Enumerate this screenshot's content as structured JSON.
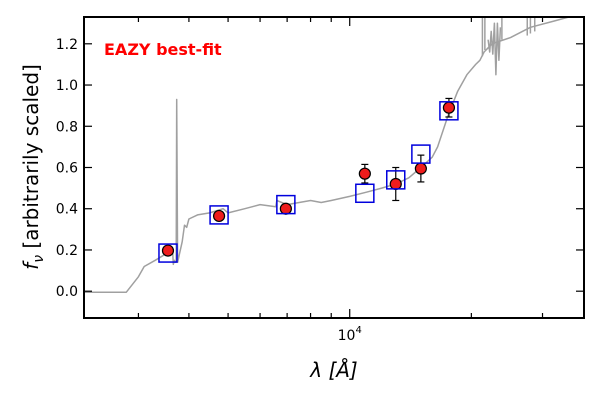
{
  "chart_data": {
    "type": "scatter",
    "title": "",
    "xlabel": "λ [Å]",
    "ylabel": "f_ν [arbitrarily scaled]",
    "x_scale": "log",
    "xlim": [
      2200,
      38000
    ],
    "ylim": [
      -0.13,
      1.33
    ],
    "y_ticks": [
      0.0,
      0.2,
      0.4,
      0.6,
      0.8,
      1.0,
      1.2
    ],
    "y_tick_labels": [
      "0.0",
      "0.2",
      "0.4",
      "0.6",
      "0.8",
      "1.0",
      "1.2"
    ],
    "x_major_ticks": [
      10000
    ],
    "x_major_tick_labels": [
      "10^4"
    ],
    "x_minor_ticks": [
      3000,
      4000,
      5000,
      6000,
      7000,
      8000,
      9000,
      20000,
      30000
    ],
    "grid": false,
    "annotation": {
      "text": "EAZY best-fit",
      "color": "#ff0000"
    },
    "colors": {
      "sed": "#a0a0a0",
      "obs_fill": "#ee1c1c",
      "obs_edge": "#000000",
      "model_box": "#0000dd"
    },
    "series": [
      {
        "kind": "line",
        "x": [
          2200,
          2800,
          3000,
          3100,
          3300,
          3500,
          3550,
          3600,
          3645,
          3660,
          3680,
          3700,
          3720,
          3730,
          3750,
          3850,
          3900,
          3950,
          4000,
          4200,
          4500,
          4861,
          5000,
          5500,
          6000,
          6563,
          6600,
          7000,
          7500,
          8000,
          8500,
          9000,
          10000,
          11000,
          12000,
          13000,
          14000,
          15000,
          16000,
          16500,
          17500,
          18500,
          19500,
          20500,
          21000,
          21500,
          22500,
          25000,
          28000,
          32000,
          38000
        ],
        "y": [
          -0.005,
          -0.005,
          0.07,
          0.12,
          0.15,
          0.18,
          0.17,
          0.19,
          0.2,
          0.13,
          0.15,
          0.14,
          0.14,
          0.93,
          0.14,
          0.24,
          0.32,
          0.31,
          0.35,
          0.37,
          0.38,
          0.4,
          0.38,
          0.4,
          0.42,
          0.41,
          0.44,
          0.42,
          0.43,
          0.44,
          0.43,
          0.44,
          0.46,
          0.48,
          0.5,
          0.52,
          0.55,
          0.6,
          0.65,
          0.7,
          0.85,
          0.97,
          1.05,
          1.1,
          1.12,
          1.16,
          1.2,
          1.23,
          1.28,
          1.31,
          1.35
        ]
      },
      {
        "kind": "line",
        "x": [
          22000,
          22200,
          22400,
          22600,
          22800,
          23000,
          23200,
          23400,
          23600
        ],
        "y": [
          1.22,
          1.16,
          1.26,
          1.15,
          1.3,
          1.05,
          1.3,
          1.12,
          1.28
        ]
      },
      {
        "kind": "spikes",
        "x": [
          21300,
          21600,
          23800,
          27500,
          28000,
          28700
        ],
        "base": [
          1.14,
          1.17,
          1.22,
          1.24,
          1.25,
          1.26
        ],
        "top": [
          1.35,
          1.35,
          1.35,
          1.35,
          1.35,
          1.35
        ]
      },
      {
        "kind": "points",
        "marker": "circle",
        "x": [
          3550,
          4750,
          6950,
          10900,
          13000,
          15000,
          17600
        ],
        "y": [
          0.197,
          0.365,
          0.4,
          0.57,
          0.52,
          0.595,
          0.89
        ],
        "yerr": [
          0.018,
          0.014,
          0.02,
          0.045,
          0.08,
          0.065,
          0.045
        ]
      },
      {
        "kind": "points",
        "marker": "square",
        "x": [
          3550,
          4750,
          6950,
          10900,
          13000,
          15000,
          17600
        ],
        "y": [
          0.185,
          0.37,
          0.42,
          0.475,
          0.54,
          0.665,
          0.875
        ]
      }
    ]
  }
}
